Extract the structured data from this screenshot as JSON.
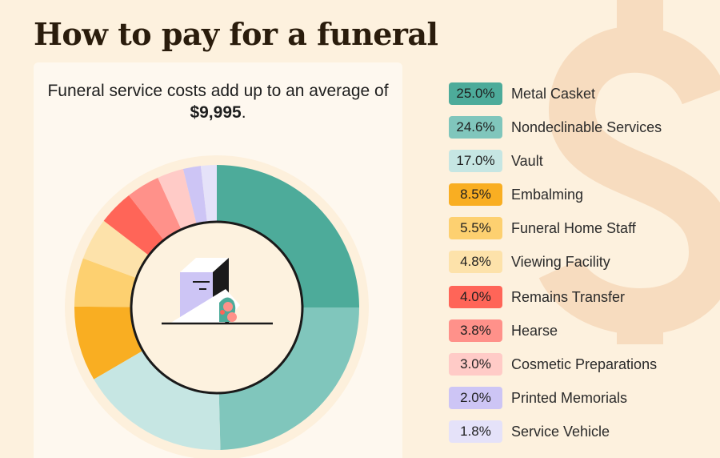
{
  "title": "How to pay for a funeral",
  "subtitle_pre": "Funeral service costs add up to an average of ",
  "subtitle_amount": "$9,995",
  "subtitle_post": ".",
  "background_symbol": "$",
  "chart_data": {
    "type": "pie",
    "variant": "donut",
    "title": "Funeral service costs add up to an average of $9,995.",
    "categories": [
      "Metal Casket",
      "Nondeclinable Services",
      "Vault",
      "Embalming",
      "Funeral Home Staff",
      "Viewing Facility",
      "Remains Transfer",
      "Hearse",
      "Cosmetic Preparations",
      "Printed Memorials",
      "Service Vehicle"
    ],
    "values": [
      25.0,
      24.6,
      17.0,
      8.5,
      5.5,
      4.8,
      4.0,
      3.8,
      3.0,
      2.0,
      1.8
    ],
    "labels": [
      "25.0%",
      "24.6%",
      "17.0%",
      "8.5%",
      "5.5%",
      "4.8%",
      "4.0%",
      "3.8%",
      "3.0%",
      "2.0%",
      "1.8%"
    ],
    "colors": [
      "#4dab9a",
      "#80c6bc",
      "#c6e6e3",
      "#f9ae22",
      "#fdd070",
      "#fde2aa",
      "#ff6558",
      "#ff918a",
      "#ffcbc7",
      "#cdc5f5",
      "#e5e2f9"
    ],
    "legend_position": "right",
    "center_icon": "casket-with-flowers-icon"
  }
}
